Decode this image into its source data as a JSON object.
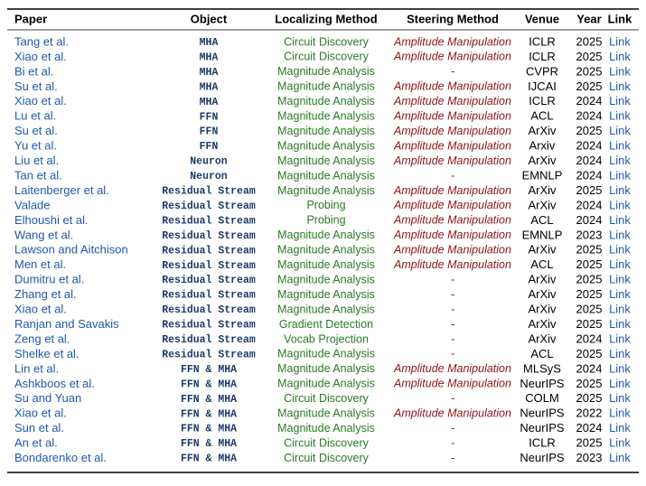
{
  "table": {
    "header": [
      "Paper",
      "Object",
      "Localizing Method",
      "Steering Method",
      "Venue",
      "Year",
      "Link"
    ],
    "rows": [
      [
        "Tang et al.",
        "MHA",
        "Circuit Discovery",
        "Amplitude Manipulation",
        "ICLR",
        2025,
        "Link"
      ],
      [
        "Xiao et al.",
        "MHA",
        "Circuit Discovery",
        "Amplitude Manipulation",
        "ICLR",
        2025,
        "Link"
      ],
      [
        "Bi et al.",
        "MHA",
        "Magnitude Analysis",
        "-",
        "CVPR",
        2025,
        "Link"
      ],
      [
        "Su et al.",
        "MHA",
        "Magnitude Analysis",
        "Amplitude Manipulation",
        "IJCAI",
        2025,
        "Link"
      ],
      [
        "Xiao et al.",
        "MHA",
        "Magnitude Analysis",
        "Amplitude Manipulation",
        "ICLR",
        2024,
        "Link"
      ],
      [
        "Lu et al.",
        "FFN",
        "Magnitude Analysis",
        "Amplitude Manipulation",
        "ACL",
        2024,
        "Link"
      ],
      [
        "Su et al.",
        "FFN",
        "Magnitude Analysis",
        "Amplitude Manipulation",
        "ArXiv",
        2025,
        "Link"
      ],
      [
        "Yu et al.",
        "FFN",
        "Magnitude Analysis",
        "Amplitude Manipulation",
        "Arxiv",
        2024,
        "Link"
      ],
      [
        "Liu et al.",
        "Neuron",
        "Magnitude Analysis",
        "Amplitude Manipulation",
        "ArXiv",
        2024,
        "Link"
      ],
      [
        "Tan et al.",
        "Neuron",
        "Magnitude Analysis",
        "-",
        "EMNLP",
        2024,
        "Link"
      ],
      [
        "Laitenberger et al.",
        "Residual Stream",
        "Magnitude Analysis",
        "Amplitude Manipulation",
        "ArXiv",
        2025,
        "Link"
      ],
      [
        "Valade",
        "Residual Stream",
        "Probing",
        "Amplitude Manipulation",
        "ArXiv",
        2024,
        "Link"
      ],
      [
        "Elhoushi et al.",
        "Residual Stream",
        "Probing",
        "Amplitude Manipulation",
        "ACL",
        2024,
        "Link"
      ],
      [
        "Wang et al.",
        "Residual Stream",
        "Magnitude Analysis",
        "Amplitude Manipulation",
        "EMNLP",
        2023,
        "Link"
      ],
      [
        "Lawson and Aitchison",
        "Residual Stream",
        "Magnitude Analysis",
        "Amplitude Manipulation",
        "ArXiv",
        2025,
        "Link"
      ],
      [
        "Men et al.",
        "Residual Stream",
        "Magnitude Analysis",
        "Amplitude Manipulation",
        "ACL",
        2025,
        "Link"
      ],
      [
        "Dumitru et al.",
        "Residual Stream",
        "Magnitude Analysis",
        "-",
        "ArXiv",
        2025,
        "Link"
      ],
      [
        "Zhang et al.",
        "Residual Stream",
        "Magnitude Analysis",
        "-",
        "ArXiv",
        2025,
        "Link"
      ],
      [
        "Xiao et al.",
        "Residual Stream",
        "Magnitude Analysis",
        "-",
        "ArXiv",
        2025,
        "Link"
      ],
      [
        "Ranjan and Savakis",
        "Residual Stream",
        "Gradient Detection",
        "-",
        "ArXiv",
        2025,
        "Link"
      ],
      [
        "Zeng et al.",
        "Residual Stream",
        "Vocab Projection",
        "-",
        "ArXiv",
        2024,
        "Link"
      ],
      [
        "Shelke et al.",
        "Residual Stream",
        "Magnitude Analysis",
        "-",
        "ACL",
        2025,
        "Link"
      ],
      [
        "Lin et al.",
        "FFN & MHA",
        "Magnitude Analysis",
        "Amplitude Manipulation",
        "MLSyS",
        2024,
        "Link"
      ],
      [
        "Ashkboos et al.",
        "FFN & MHA",
        "Magnitude Analysis",
        "Amplitude Manipulation",
        "NeurIPS",
        2025,
        "Link"
      ],
      [
        "Su and Yuan",
        "FFN & MHA",
        "Circuit Discovery",
        "-",
        "COLM",
        2025,
        "Link"
      ],
      [
        "Xiao et al.",
        "FFN & MHA",
        "Magnitude Analysis",
        "Amplitude Manipulation",
        "NeurIPS",
        2022,
        "Link"
      ],
      [
        "Sun et al.",
        "FFN & MHA",
        "Magnitude Analysis",
        "-",
        "NeurIPS",
        2024,
        "Link"
      ],
      [
        "An et al.",
        "FFN & MHA",
        "Circuit Discovery",
        "-",
        "ICLR",
        2025,
        "Link"
      ],
      [
        "Bondarenko et al.",
        "FFN & MHA",
        "Circuit Discovery",
        "-",
        "NeurIPS",
        2023,
        "Link"
      ]
    ]
  }
}
